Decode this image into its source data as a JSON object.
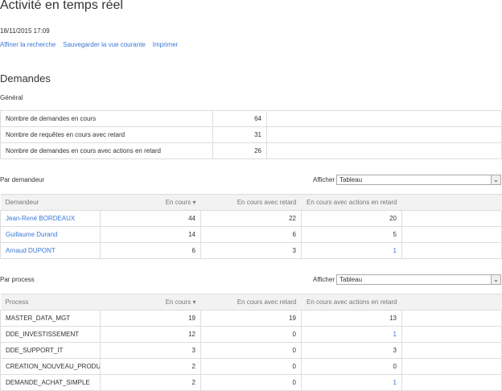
{
  "title": "Activité en temps réel",
  "datetime": "18/11/2015 17:09",
  "links": [
    "Affiner la recherche",
    "Sauvegarder la vue courante",
    "Imprimer"
  ],
  "section": "Demandes",
  "general": {
    "label": "Général",
    "rows": [
      {
        "label": "Nombre de demandes en cours",
        "value": "64"
      },
      {
        "label": "Nombre de requêtes en cours avec retard",
        "value": "31"
      },
      {
        "label": "Nombre de demandes en cours avec actions en retard",
        "value": "26"
      }
    ]
  },
  "afficher_label": "Afficher",
  "par_demandeur": {
    "label": "Par demandeur",
    "select": "Tableau",
    "headers": [
      "Demandeur",
      "En cours ▾",
      "En cours avec retard",
      "En cours avec actions en retard"
    ],
    "rows": [
      {
        "name": "Jean-René BORDEAUX",
        "c1": "44",
        "c2": "22",
        "c3": "20"
      },
      {
        "name": "Guillaume Durand",
        "c1": "14",
        "c2": "6",
        "c3": "5"
      },
      {
        "name": "Arnaud DUPONT",
        "c1": "6",
        "c2": "3",
        "c3": "1"
      }
    ]
  },
  "par_process": {
    "label": "Par process",
    "select": "Tableau",
    "headers": [
      "Process",
      "En cours ▾",
      "En cours avec retard",
      "En cours avec actions en retard"
    ],
    "rows": [
      {
        "name": "MASTER_DATA_MGT",
        "c1": "19",
        "c2": "19",
        "c3": "13"
      },
      {
        "name": "DDE_INVESTISSEMENT",
        "c1": "12",
        "c2": "0",
        "c3": "1"
      },
      {
        "name": "DDE_SUPPORT_IT",
        "c1": "3",
        "c2": "0",
        "c3": "3"
      },
      {
        "name": "CREATION_NOUVEAU_PRODUIT",
        "c1": "2",
        "c2": "0",
        "c3": "0"
      },
      {
        "name": "DEMANDE_ACHAT_SIMPLE",
        "c1": "2",
        "c2": "0",
        "c3": "1"
      }
    ]
  }
}
